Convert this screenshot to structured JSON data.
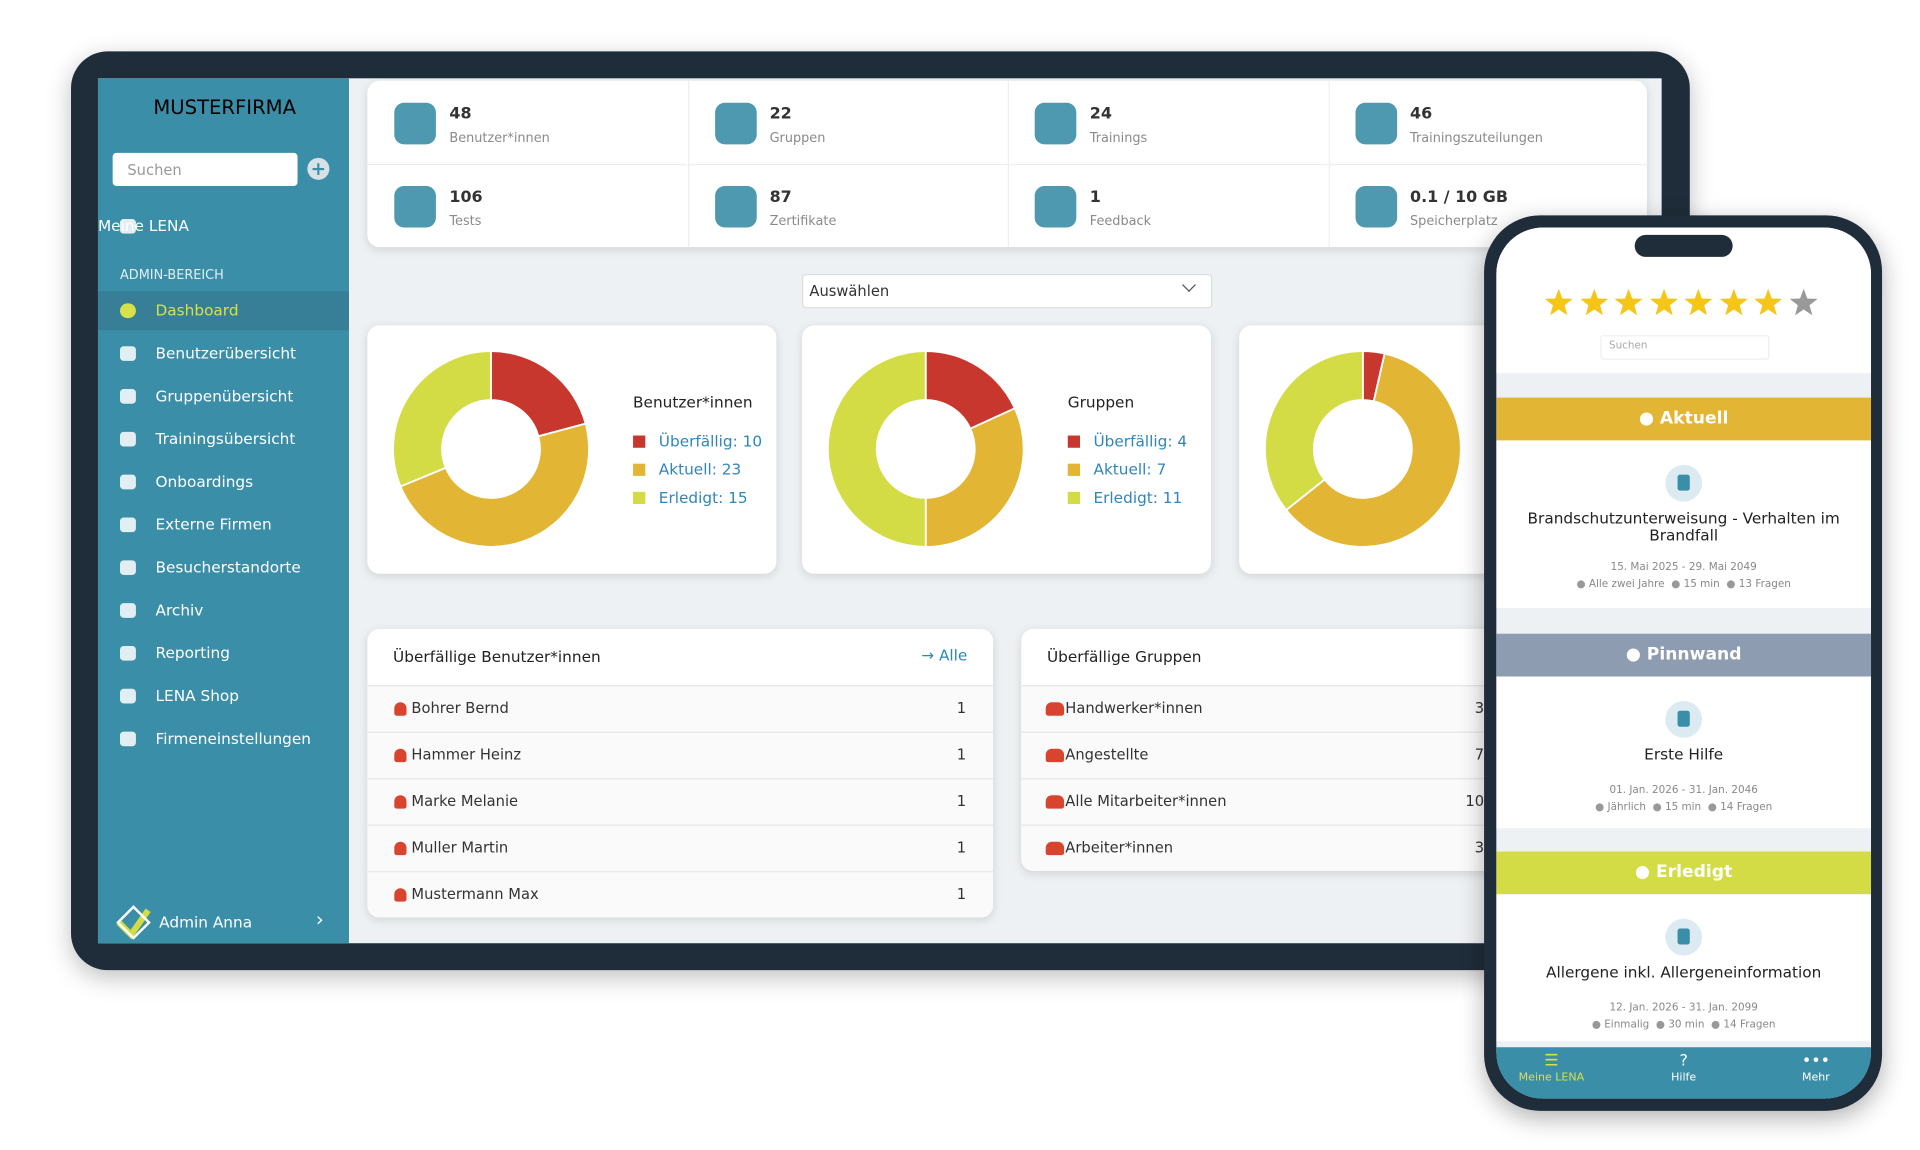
{
  "brand": "MUSTERFIRMA",
  "sidebar": {
    "search": "Suchen",
    "my": "Meine LENA",
    "section": "ADMIN-BEREICH",
    "items": [
      "Dashboard",
      "Benutzerübersicht",
      "Gruppenübersicht",
      "Trainingsübersicht",
      "Onboardings",
      "Externe Firmen",
      "Besucherstandorte",
      "Archiv",
      "Reporting",
      "LENA Shop",
      "Firmeneinstellungen"
    ],
    "user": "Admin Anna"
  },
  "stats": [
    {
      "value": "48",
      "label": "Benutzer*innen"
    },
    {
      "value": "22",
      "label": "Gruppen"
    },
    {
      "value": "24",
      "label": "Trainings"
    },
    {
      "value": "46",
      "label": "Trainingszuteilungen"
    },
    {
      "value": "106",
      "label": "Tests"
    },
    {
      "value": "87",
      "label": "Zertifikate"
    },
    {
      "value": "1",
      "label": "Feedback"
    },
    {
      "value": "0.1 / 10 GB",
      "label": "Speicherplatz"
    }
  ],
  "select": "Auswählen",
  "charts": [
    {
      "type": "donut",
      "title": "Benutzer*innen",
      "segments": [
        {
          "label": "Überfällig: 10",
          "value": 10,
          "color": "#c8372d"
        },
        {
          "label": "Aktuell: 23",
          "value": 23,
          "color": "#e3b534"
        },
        {
          "label": "Erledigt: 15",
          "value": 15,
          "color": "#d3dc45"
        }
      ]
    },
    {
      "type": "donut",
      "title": "Gruppen",
      "segments": [
        {
          "label": "Überfällig: 4",
          "value": 4,
          "color": "#c8372d"
        },
        {
          "label": "Aktuell: 7",
          "value": 7,
          "color": "#e3b534"
        },
        {
          "label": "Erledigt: 11",
          "value": 11,
          "color": "#d3dc45"
        }
      ]
    },
    {
      "type": "donut",
      "segments": [
        {
          "value": 1,
          "color": "#c8372d"
        },
        {
          "value": 17,
          "color": "#e3b534"
        },
        {
          "value": 10,
          "color": "#d3dc45"
        }
      ]
    }
  ],
  "tables": [
    {
      "title": "Überfällige Benutzer*innen",
      "link": "Alle",
      "rows": [
        [
          "Bohrer Bernd",
          "1"
        ],
        [
          "Hammer Heinz",
          "1"
        ],
        [
          "Marke Melanie",
          "1"
        ],
        [
          "Muller Martin",
          "1"
        ],
        [
          "Mustermann Max",
          "1"
        ]
      ]
    },
    {
      "title": "Überfällige Gruppen",
      "rows": [
        [
          "Handwerker*innen",
          "3"
        ],
        [
          "Angestellte",
          "7"
        ],
        [
          "Alle Mitarbeiter*innen",
          "10"
        ],
        [
          "Arbeiter*innen",
          "3"
        ]
      ]
    }
  ],
  "phone": {
    "rating": 7,
    "stars": 8,
    "search": "Suchen",
    "sections": [
      {
        "name": "Aktuell",
        "color": "#e3b534",
        "title": "Brandschutzunterweisung - Verhalten im Brandfall",
        "dates": "15. Mai 2025 - 29. Mai 2049",
        "meta": [
          "Alle zwei Jahre",
          "15 min",
          "13 Fragen"
        ]
      },
      {
        "name": "Pinnwand",
        "color": "#8e9cb1",
        "title": "Erste Hilfe",
        "dates": "01. Jan. 2026 - 31. Jan. 2046",
        "meta": [
          "Jährlich",
          "15 min",
          "14 Fragen"
        ]
      },
      {
        "name": "Erledigt",
        "color": "#d3dc45",
        "title": "Allergene inkl. Allergeneinformation",
        "dates": "12. Jan. 2026 - 31. Jan. 2099",
        "meta": [
          "Einmalig",
          "30 min",
          "14 Fragen"
        ]
      }
    ],
    "nav": [
      "Meine LENA",
      "Hilfe",
      "Mehr"
    ]
  }
}
